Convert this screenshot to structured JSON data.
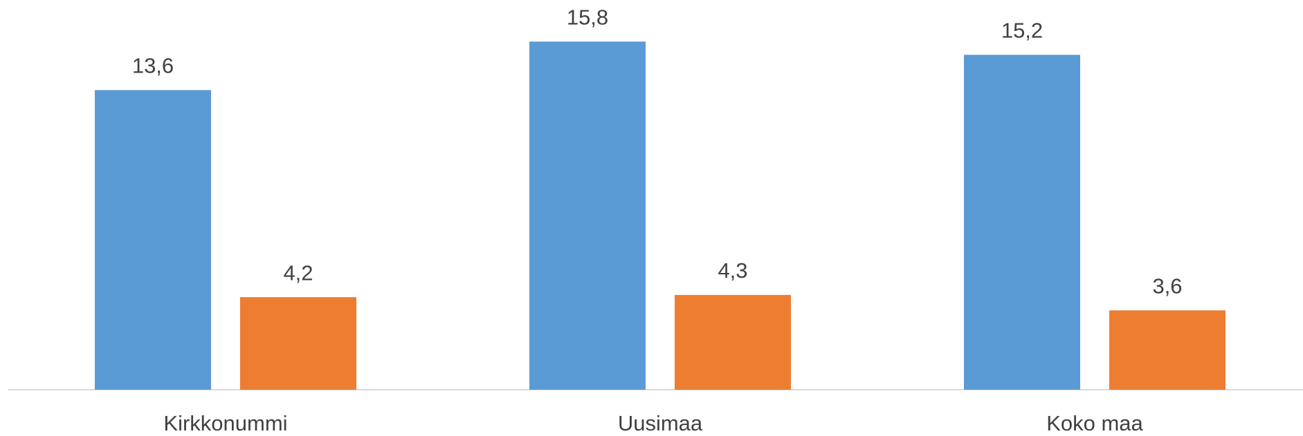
{
  "chart_data": {
    "type": "bar",
    "categories": [
      "Kirkkonummi",
      "Uusimaa",
      "Koko maa"
    ],
    "series": [
      {
        "color": "#5b9bd5",
        "values": [
          13.6,
          15.8,
          15.2
        ],
        "value_labels": [
          "13,6",
          "15,8",
          "15,2"
        ]
      },
      {
        "color": "#ed7d31",
        "values": [
          4.2,
          4.3,
          3.6
        ],
        "value_labels": [
          "4,2",
          "4,3",
          "3,6"
        ]
      }
    ],
    "ylim": [
      0,
      17.5
    ],
    "grid": false
  }
}
